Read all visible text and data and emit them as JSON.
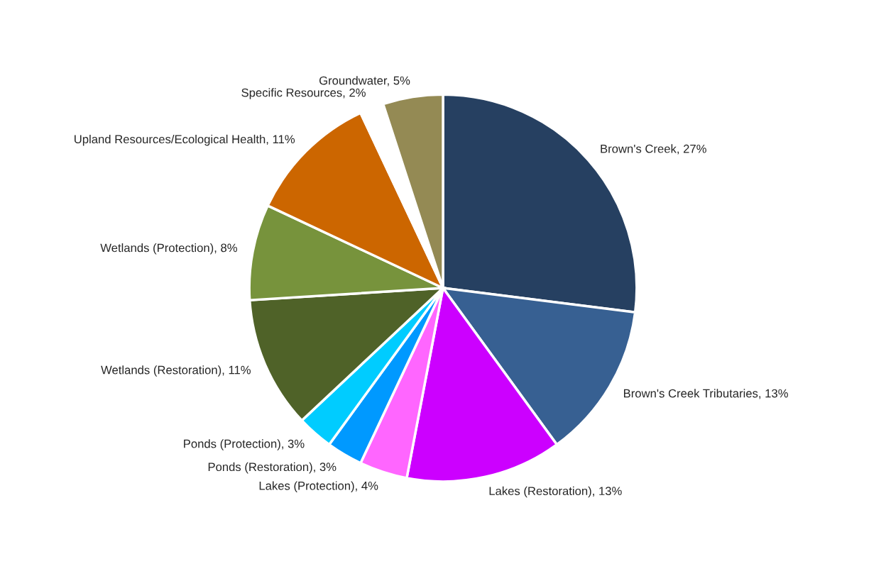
{
  "chart_data": {
    "type": "pie",
    "categories": [
      "Brown's Creek",
      "Brown's Creek Tributaries",
      "Lakes (Restoration)",
      "Lakes (Protection)",
      "Ponds (Restoration)",
      "Ponds (Protection)",
      "Wetlands (Restoration)",
      "Wetlands (Protection)",
      "Upland Resources/Ecological Health",
      "Specific Resources",
      "Groundwater"
    ],
    "values": [
      27,
      13,
      13,
      4,
      3,
      3,
      11,
      8,
      11,
      2,
      5
    ],
    "value_labels": [
      "27%",
      "13%",
      "13%",
      "4%",
      "3%",
      "3%",
      "11%",
      "8%",
      "11%",
      "2%",
      "5%"
    ],
    "colors": [
      "#264061",
      "#376092",
      "#cc00ff",
      "#ff66ff",
      "#0099ff",
      "#00ccff",
      "#4f6228",
      "#77933c",
      "#cc6600",
      "#ffffff",
      "#948a54"
    ],
    "legend": false
  }
}
